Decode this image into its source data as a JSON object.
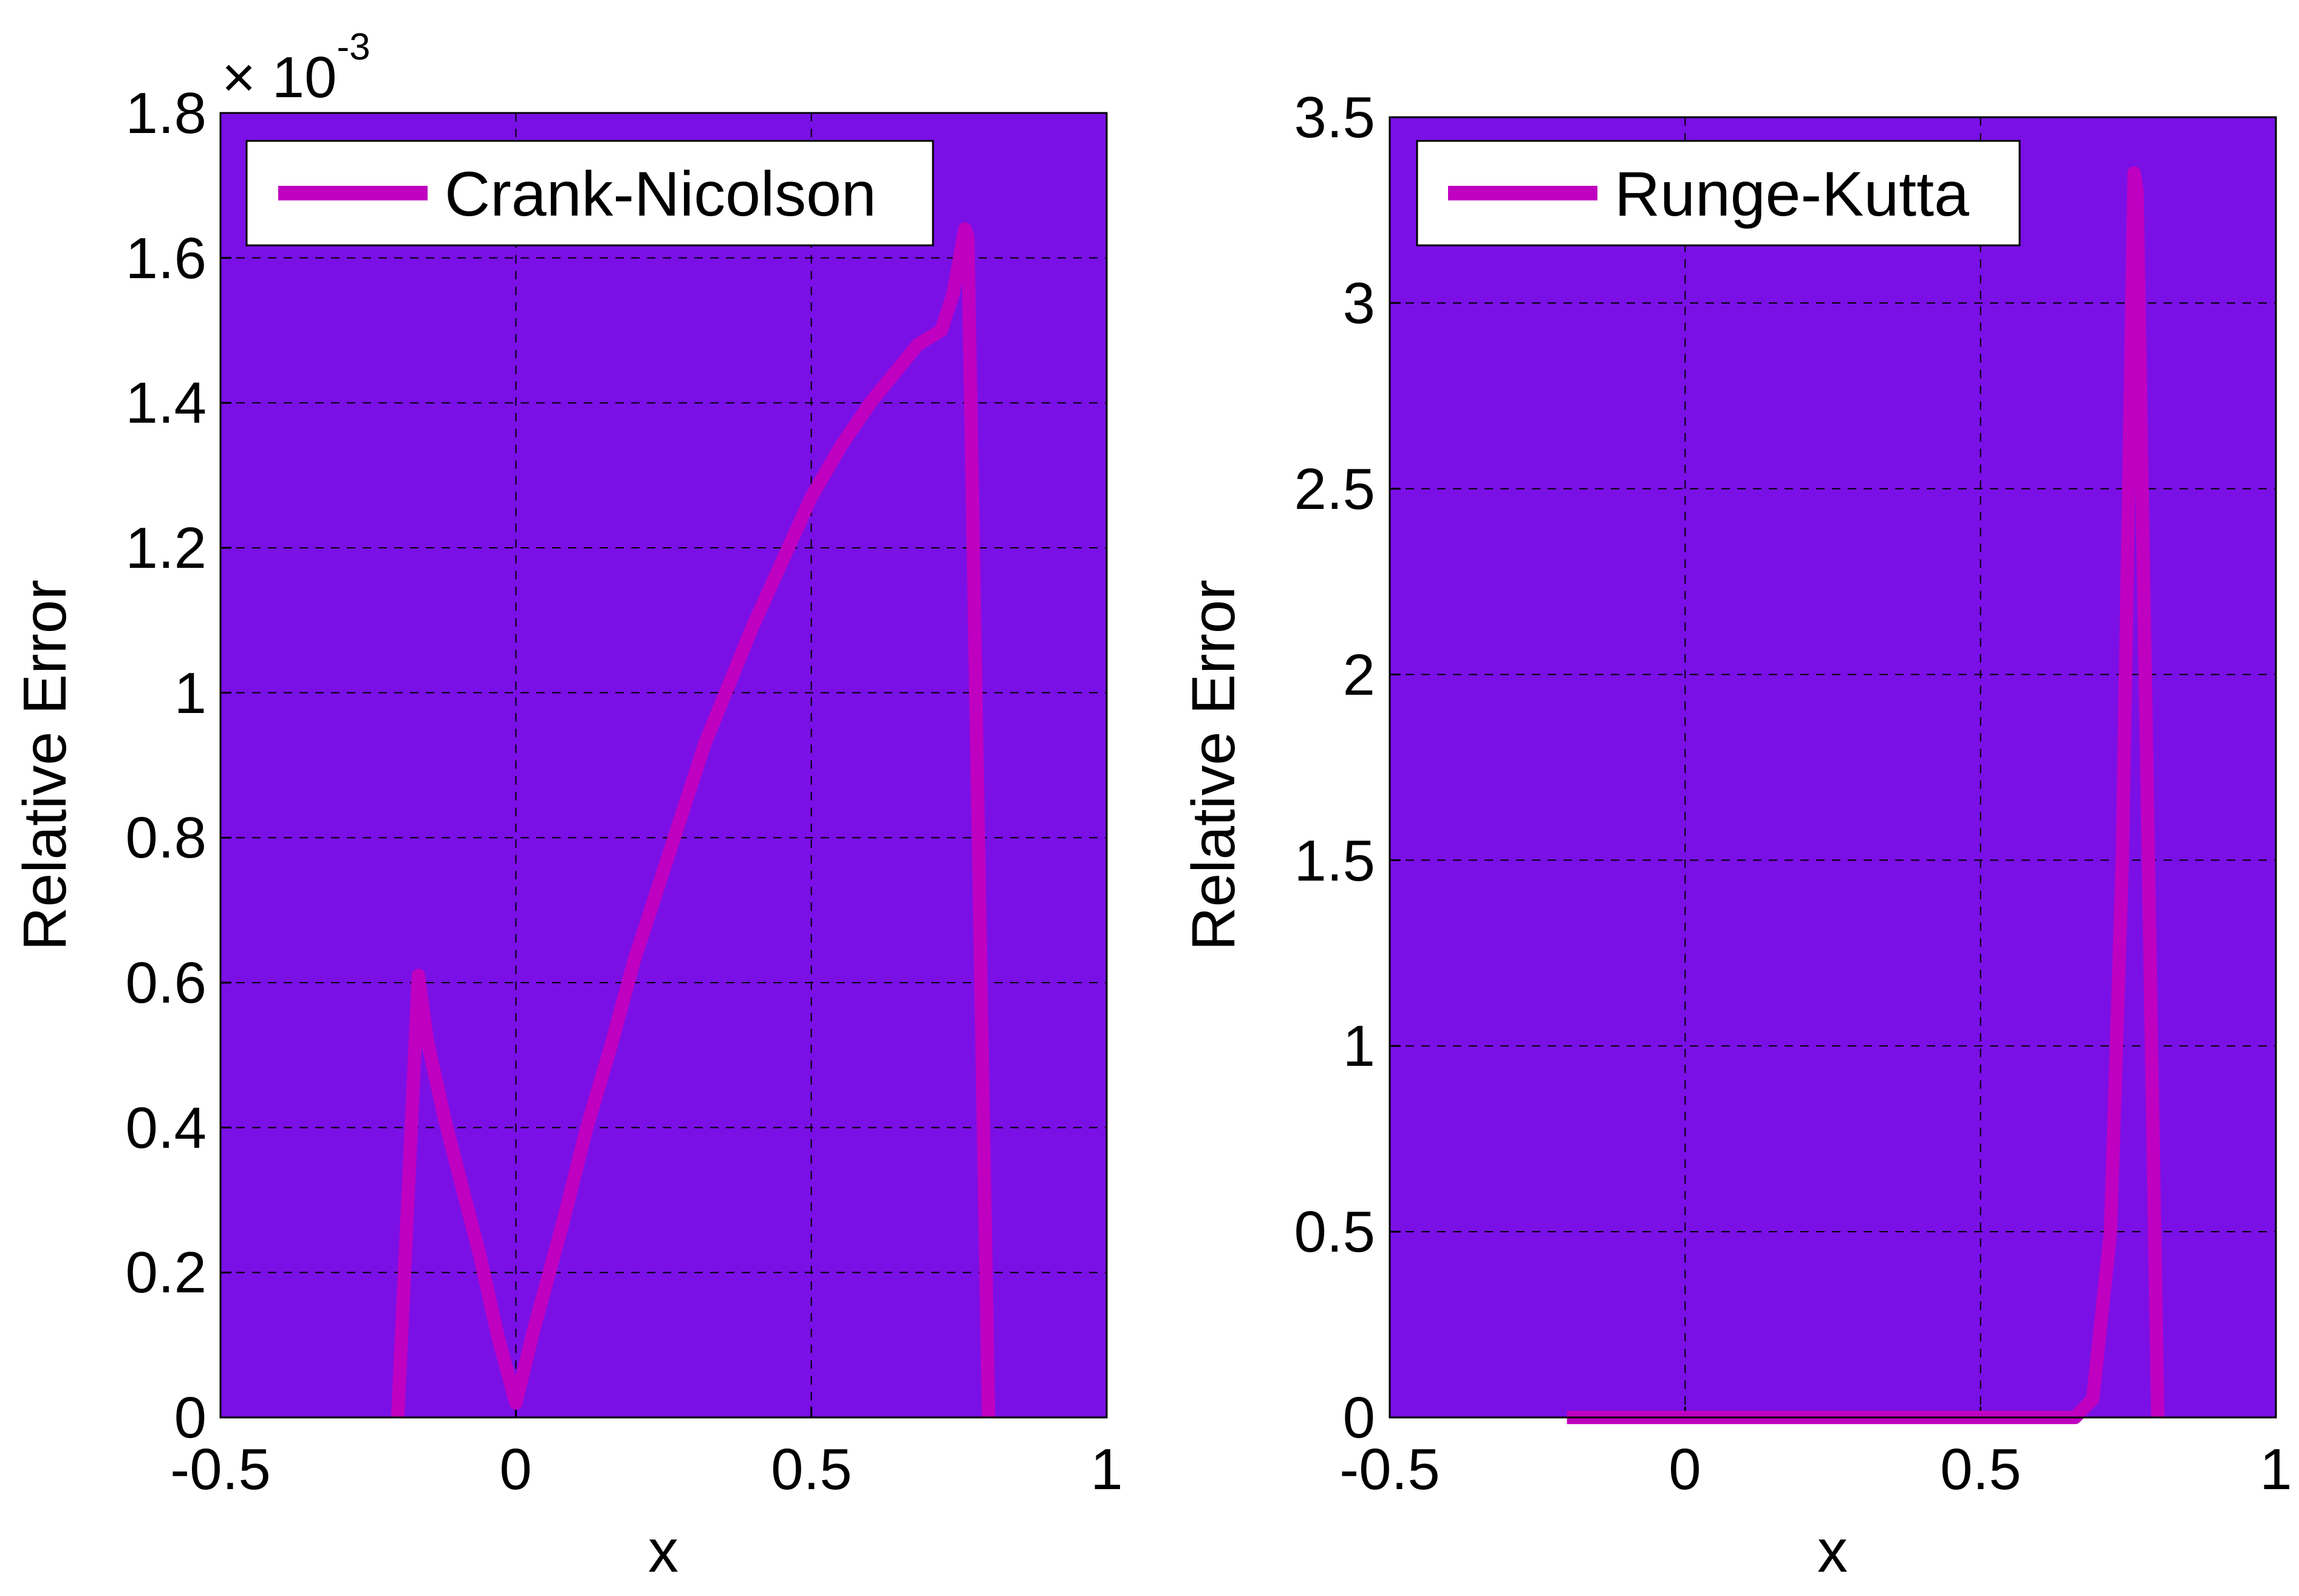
{
  "colors": {
    "plot_background": "#7a10e6",
    "series_line": "#c000c0",
    "grid": "#000000",
    "legend_background": "#ffffff"
  },
  "chart_data": [
    {
      "type": "line",
      "title": "",
      "xlabel": "x",
      "ylabel": "Relative Error",
      "xlim": [
        -0.5,
        1
      ],
      "ylim": [
        0,
        0.0018
      ],
      "y_multiplier": {
        "base": "× 10",
        "exponent": "-3"
      },
      "grid": true,
      "legend_position": "top-left",
      "xtick_labels": [
        "-0.5",
        "0",
        "0.5",
        "1"
      ],
      "xtick_values": [
        -0.5,
        0,
        0.5,
        1
      ],
      "ytick_labels": [
        "0",
        "0.2",
        "0.4",
        "0.6",
        "0.8",
        "1",
        "1.2",
        "1.4",
        "1.6",
        "1.8"
      ],
      "ytick_values": [
        0,
        0.0002,
        0.0004,
        0.0006,
        0.0008,
        0.001,
        0.0012,
        0.0014,
        0.0016,
        0.0018
      ],
      "series": [
        {
          "name": "Crank-Nicolson",
          "x": [
            -0.2,
            -0.165,
            -0.15,
            -0.12,
            -0.06,
            -0.03,
            0.0,
            0.03,
            0.08,
            0.12,
            0.16,
            0.2,
            0.24,
            0.28,
            0.32,
            0.36,
            0.4,
            0.45,
            0.5,
            0.55,
            0.6,
            0.68,
            0.72,
            0.74,
            0.76,
            0.765,
            0.8
          ],
          "y": [
            0.0,
            0.00061,
            0.00052,
            0.00041,
            0.00022,
            0.00011,
            2e-05,
            0.00012,
            0.00027,
            0.0004,
            0.00051,
            0.00063,
            0.00073,
            0.00083,
            0.00093,
            0.00101,
            0.00109,
            0.00118,
            0.00127,
            0.00134,
            0.0014,
            0.00148,
            0.0015,
            0.00155,
            0.00164,
            0.00163,
            0.0
          ]
        }
      ]
    },
    {
      "type": "line",
      "title": "",
      "xlabel": "x",
      "ylabel": "Relative Error",
      "xlim": [
        -0.5,
        1
      ],
      "ylim": [
        0,
        3.5
      ],
      "grid": true,
      "legend_position": "top-left",
      "xtick_labels": [
        "-0.5",
        "0",
        "0.5",
        "1"
      ],
      "xtick_values": [
        -0.5,
        0,
        0.5,
        1
      ],
      "ytick_labels": [
        "0",
        "0.5",
        "1",
        "1.5",
        "2",
        "2.5",
        "3",
        "3.5"
      ],
      "ytick_values": [
        0,
        0.5,
        1,
        1.5,
        2,
        2.5,
        3,
        3.5
      ],
      "series": [
        {
          "name": "Runge-Kutta",
          "x": [
            -0.2,
            0.0,
            0.2,
            0.4,
            0.6,
            0.66,
            0.69,
            0.72,
            0.74,
            0.76,
            0.765,
            0.8
          ],
          "y": [
            0.0,
            0.0,
            0.0,
            0.0,
            0.0,
            0.0,
            0.05,
            0.5,
            1.5,
            3.35,
            3.3,
            0.0
          ]
        }
      ]
    }
  ]
}
